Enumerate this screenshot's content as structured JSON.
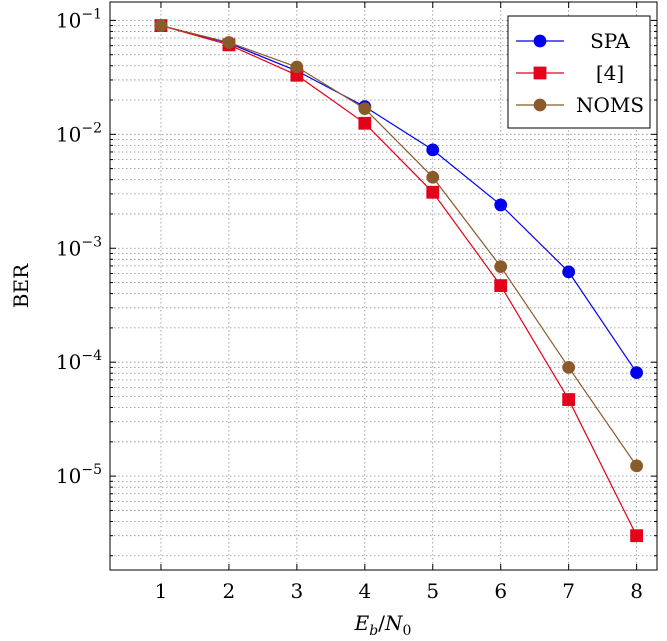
{
  "chart_data": {
    "type": "line",
    "xlabel": "Eb/N0",
    "ylabel": "BER",
    "y_scale": "log",
    "x_ticks": [
      1,
      2,
      3,
      4,
      5,
      6,
      7,
      8
    ],
    "y_tick_labels": [
      {
        "value": 0.1,
        "base": "10",
        "exp": "−1"
      },
      {
        "value": 0.01,
        "base": "10",
        "exp": "−2"
      },
      {
        "value": 0.001,
        "base": "10",
        "exp": "−3"
      },
      {
        "value": 0.0001,
        "base": "10",
        "exp": "−4"
      },
      {
        "value": 1e-05,
        "base": "10",
        "exp": "−5"
      }
    ],
    "xlim": [
      0.25,
      8.3
    ],
    "ylim": [
      1.5e-06,
      0.145
    ],
    "grid": true,
    "legend_position": "top-right",
    "x": [
      1,
      2,
      3,
      4,
      5,
      6,
      7,
      8
    ],
    "series": [
      {
        "name": "SPA",
        "color": "#0000ee",
        "marker": "circle",
        "values": [
          0.09,
          0.063,
          0.036,
          0.0175,
          0.0073,
          0.0024,
          0.00062,
          8.1e-05
        ]
      },
      {
        "name": "[4]",
        "color": "#e5001c",
        "marker": "square",
        "values": [
          0.09,
          0.061,
          0.033,
          0.0125,
          0.0031,
          0.00047,
          4.7e-05,
          3e-06
        ]
      },
      {
        "name": "NOMS",
        "color": "#8b5a2b",
        "marker": "circle",
        "values": [
          0.09,
          0.064,
          0.039,
          0.0168,
          0.0042,
          0.00069,
          9e-05,
          1.23e-05
        ]
      }
    ]
  }
}
